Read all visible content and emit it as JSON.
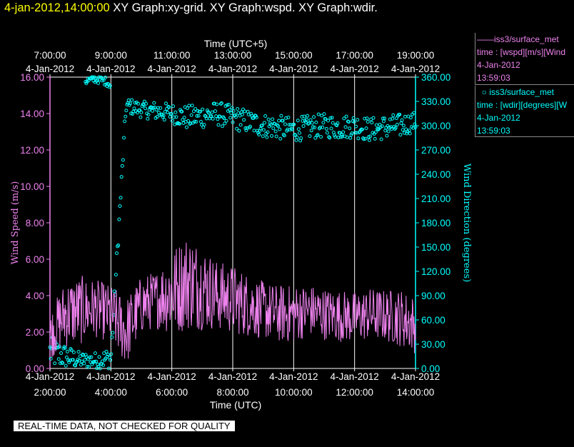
{
  "header": {
    "timestamp": "4-jan-2012,14:00:00",
    "graphs": "XY Graph:xy-grid.  XY Graph:wspd.  XY Graph:wdir."
  },
  "legend": {
    "wspd": {
      "title": "iss3/surface_met",
      "variable": "time : [wspd][m/s][Wind",
      "date": "4-Jan-2012",
      "time": "13:59:03"
    },
    "wdir": {
      "title": "iss3/surface_met",
      "variable": "time : [wdir][degrees][W",
      "date": "4-Jan-2012",
      "time": "13:59:03"
    }
  },
  "footer": {
    "quality_note": "REAL-TIME DATA, NOT CHECKED FOR QUALITY"
  },
  "colors": {
    "wspd": "#ee82ee",
    "wdir": "#00ffff",
    "grid": "#ffffff",
    "timestamp": "#ffff00"
  },
  "chart_data": {
    "type": "line",
    "top_axis_title": "Time (UTC+5)",
    "bottom_axis_title": "Time (UTC)",
    "top_ticks": [
      {
        "time": "7:00:00",
        "date": "4-Jan-2012"
      },
      {
        "time": "9:00:00",
        "date": "4-Jan-2012"
      },
      {
        "time": "11:00:00",
        "date": "4-Jan-2012"
      },
      {
        "time": "13:00:00",
        "date": "4-Jan-2012"
      },
      {
        "time": "15:00:00",
        "date": "4-Jan-2012"
      },
      {
        "time": "17:00:00",
        "date": "4-Jan-2012"
      },
      {
        "time": "19:00:00",
        "date": "4-Jan-2012"
      }
    ],
    "bottom_ticks": [
      {
        "time": "2:00:00",
        "date": "4-Jan-2012"
      },
      {
        "time": "4:00:00",
        "date": "4-Jan-2012"
      },
      {
        "time": "6:00:00",
        "date": "4-Jan-2012"
      },
      {
        "time": "8:00:00",
        "date": "4-Jan-2012"
      },
      {
        "time": "10:00:00",
        "date": "4-Jan-2012"
      },
      {
        "time": "12:00:00",
        "date": "4-Jan-2012"
      },
      {
        "time": "14:00:00",
        "date": "4-Jan-2012"
      }
    ],
    "xlim": [
      "2012-01-04T02:00:00Z",
      "2012-01-04T14:00:00Z"
    ],
    "left_axis": {
      "label": "Wind Speed (m/s)",
      "ylim": [
        0,
        16
      ],
      "ticks": [
        "0.00",
        "2.00",
        "4.00",
        "6.00",
        "8.00",
        "10.00",
        "12.00",
        "14.00",
        "16.00"
      ]
    },
    "right_axis": {
      "label": "Wind Direction (degrees)",
      "ylim": [
        0,
        360
      ],
      "ticks": [
        "0.00",
        "30.00",
        "60.00",
        "90.00",
        "120.00",
        "150.00",
        "180.00",
        "210.00",
        "240.00",
        "270.00",
        "300.00",
        "330.00",
        "360.00"
      ]
    },
    "grid": "vertical",
    "series": [
      {
        "name": "iss3/surface_met",
        "variable": "wspd",
        "style": "line",
        "x": [
          "2012-01-04T02:00:00Z",
          "2012-01-04T02:30:00Z",
          "2012-01-04T03:00:00Z",
          "2012-01-04T03:30:00Z",
          "2012-01-04T04:00:00Z",
          "2012-01-04T04:30:00Z",
          "2012-01-04T05:00:00Z",
          "2012-01-04T05:30:00Z",
          "2012-01-04T06:00:00Z",
          "2012-01-04T06:30:00Z",
          "2012-01-04T07:00:00Z",
          "2012-01-04T07:30:00Z",
          "2012-01-04T08:00:00Z",
          "2012-01-04T08:30:00Z",
          "2012-01-04T09:00:00Z",
          "2012-01-04T09:30:00Z",
          "2012-01-04T10:00:00Z",
          "2012-01-04T10:30:00Z",
          "2012-01-04T11:00:00Z",
          "2012-01-04T11:30:00Z",
          "2012-01-04T12:00:00Z",
          "2012-01-04T12:30:00Z",
          "2012-01-04T13:00:00Z",
          "2012-01-04T13:30:00Z",
          "2012-01-04T14:00:00Z"
        ],
        "values": [
          1.8,
          3.0,
          3.2,
          3.3,
          3.0,
          2.0,
          3.5,
          3.8,
          4.2,
          4.8,
          4.5,
          4.0,
          3.8,
          3.5,
          3.2,
          3.0,
          3.0,
          3.2,
          3.0,
          2.9,
          2.8,
          3.0,
          2.9,
          2.8,
          2.4
        ],
        "spread": [
          0.8,
          1.2,
          1.2,
          1.0,
          1.0,
          1.2,
          1.0,
          1.0,
          1.5,
          1.7,
          1.5,
          1.2,
          1.2,
          1.1,
          1.0,
          1.0,
          1.0,
          0.9,
          0.9,
          0.9,
          0.9,
          0.9,
          0.9,
          1.0,
          1.0
        ]
      },
      {
        "name": "iss3/surface_met",
        "variable": "wdir",
        "style": "scatter",
        "x": [
          "2012-01-04T02:00:00Z",
          "2012-01-04T02:30:00Z",
          "2012-01-04T03:00:00Z",
          "2012-01-04T03:30:00Z",
          "2012-01-04T04:00:00Z",
          "2012-01-04T04:30:00Z",
          "2012-01-04T05:00:00Z",
          "2012-01-04T05:30:00Z",
          "2012-01-04T06:00:00Z",
          "2012-01-04T06:30:00Z",
          "2012-01-04T07:00:00Z",
          "2012-01-04T07:30:00Z",
          "2012-01-04T08:00:00Z",
          "2012-01-04T08:30:00Z",
          "2012-01-04T09:00:00Z",
          "2012-01-04T09:30:00Z",
          "2012-01-04T10:00:00Z",
          "2012-01-04T10:30:00Z",
          "2012-01-04T11:00:00Z",
          "2012-01-04T11:30:00Z",
          "2012-01-04T12:00:00Z",
          "2012-01-04T12:30:00Z",
          "2012-01-04T13:00:00Z",
          "2012-01-04T13:30:00Z",
          "2012-01-04T14:00:00Z"
        ],
        "values": [
          20,
          15,
          10,
          10,
          12,
          325,
          320,
          318,
          315,
          310,
          312,
          315,
          310,
          305,
          300,
          298,
          295,
          298,
          300,
          298,
          300,
          295,
          298,
          300,
          305
        ],
        "spread": [
          20,
          15,
          10,
          10,
          15,
          10,
          10,
          12,
          12,
          15,
          15,
          15,
          15,
          15,
          15,
          15,
          15,
          15,
          15,
          15,
          15,
          15,
          15,
          15,
          12
        ],
        "upper_cluster": {
          "x": [
            "2012-01-04T03:10:00Z",
            "2012-01-04T03:30:00Z",
            "2012-01-04T03:50:00Z",
            "2012-01-04T04:00:00Z"
          ],
          "values": [
            355,
            358,
            355,
            350
          ]
        }
      }
    ]
  }
}
